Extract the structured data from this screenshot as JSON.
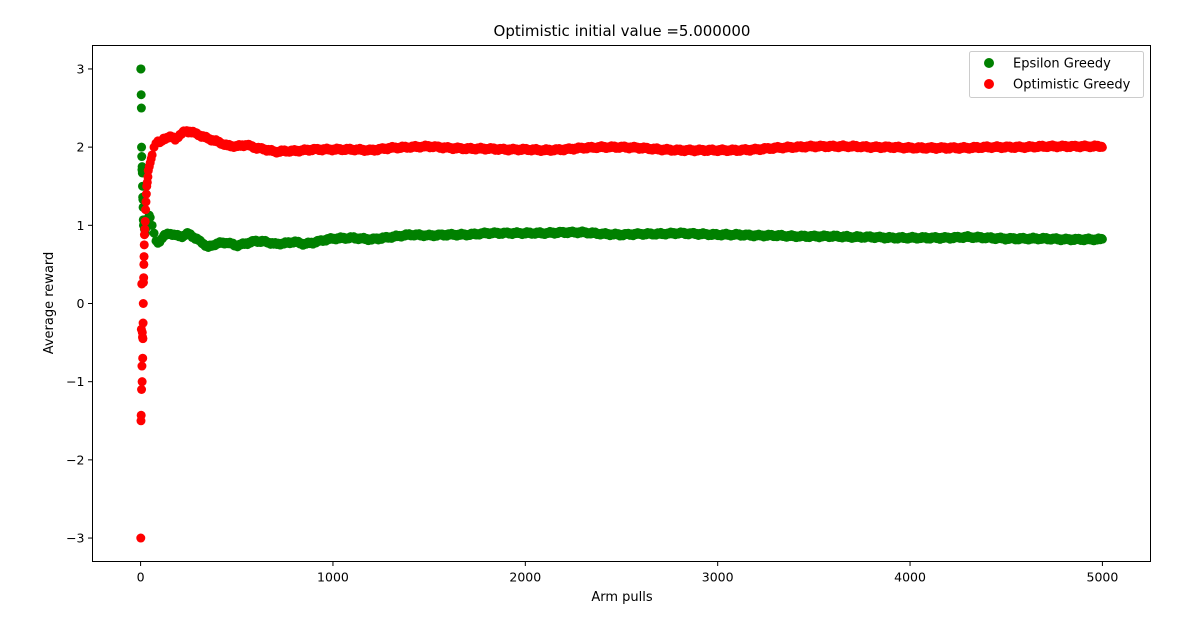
{
  "chart_data": {
    "type": "scatter",
    "title": "Optimistic initial value =5.000000",
    "xlabel": "Arm pulls",
    "ylabel": "Average reward",
    "xlim": [
      -250,
      5250
    ],
    "ylim": [
      -3.3,
      3.3
    ],
    "xticks": [
      0,
      1000,
      2000,
      3000,
      4000,
      5000
    ],
    "xtick_labels": [
      "0",
      "1000",
      "2000",
      "3000",
      "4000",
      "5000"
    ],
    "yticks": [
      -3,
      -2,
      -1,
      0,
      1,
      2,
      3
    ],
    "ytick_labels": [
      "−3",
      "−2",
      "−1",
      "0",
      "1",
      "2",
      "3"
    ],
    "grid": false,
    "legend_position": "top-right",
    "n_points": 5000,
    "series": [
      {
        "name": "Epsilon Greedy",
        "color": "#008000",
        "early_points": [
          [
            1,
            3.0
          ],
          [
            2,
            3.0
          ],
          [
            3,
            2.67
          ],
          [
            4,
            2.5
          ],
          [
            5,
            2.0
          ],
          [
            6,
            1.88
          ],
          [
            7,
            1.71
          ],
          [
            8,
            1.75
          ],
          [
            9,
            1.67
          ],
          [
            10,
            1.5
          ],
          [
            11,
            1.36
          ],
          [
            12,
            1.33
          ],
          [
            13,
            1.23
          ],
          [
            14,
            1.07
          ],
          [
            15,
            1.0
          ],
          [
            16,
            1.06
          ],
          [
            18,
            1.0
          ],
          [
            20,
            0.95
          ],
          [
            25,
            0.9
          ],
          [
            30,
            0.97
          ],
          [
            35,
            1.03
          ],
          [
            40,
            1.1
          ],
          [
            45,
            1.13
          ],
          [
            50,
            1.1
          ],
          [
            60,
            1.0
          ],
          [
            70,
            0.9
          ],
          [
            80,
            0.8
          ],
          [
            90,
            0.77
          ]
        ],
        "trend": [
          [
            100,
            0.8
          ],
          [
            120,
            0.86
          ],
          [
            150,
            0.9
          ],
          [
            180,
            0.87
          ],
          [
            220,
            0.86
          ],
          [
            250,
            0.9
          ],
          [
            280,
            0.84
          ],
          [
            320,
            0.78
          ],
          [
            350,
            0.72
          ],
          [
            400,
            0.77
          ],
          [
            450,
            0.78
          ],
          [
            500,
            0.74
          ],
          [
            550,
            0.77
          ],
          [
            600,
            0.8
          ],
          [
            650,
            0.79
          ],
          [
            700,
            0.76
          ],
          [
            750,
            0.77
          ],
          [
            800,
            0.79
          ],
          [
            850,
            0.76
          ],
          [
            900,
            0.78
          ],
          [
            950,
            0.81
          ],
          [
            1000,
            0.83
          ],
          [
            1100,
            0.84
          ],
          [
            1200,
            0.82
          ],
          [
            1300,
            0.85
          ],
          [
            1400,
            0.88
          ],
          [
            1500,
            0.87
          ],
          [
            1600,
            0.88
          ],
          [
            1700,
            0.88
          ],
          [
            1800,
            0.9
          ],
          [
            1900,
            0.9
          ],
          [
            2000,
            0.9
          ],
          [
            2100,
            0.9
          ],
          [
            2200,
            0.91
          ],
          [
            2300,
            0.91
          ],
          [
            2400,
            0.89
          ],
          [
            2500,
            0.88
          ],
          [
            2600,
            0.89
          ],
          [
            2700,
            0.89
          ],
          [
            2800,
            0.9
          ],
          [
            2900,
            0.89
          ],
          [
            3000,
            0.88
          ],
          [
            3100,
            0.88
          ],
          [
            3200,
            0.87
          ],
          [
            3300,
            0.87
          ],
          [
            3400,
            0.86
          ],
          [
            3500,
            0.86
          ],
          [
            3600,
            0.86
          ],
          [
            3700,
            0.85
          ],
          [
            3800,
            0.85
          ],
          [
            3900,
            0.84
          ],
          [
            4000,
            0.84
          ],
          [
            4100,
            0.84
          ],
          [
            4200,
            0.84
          ],
          [
            4300,
            0.85
          ],
          [
            4400,
            0.84
          ],
          [
            4500,
            0.83
          ],
          [
            4600,
            0.83
          ],
          [
            4700,
            0.83
          ],
          [
            4800,
            0.82
          ],
          [
            4900,
            0.82
          ],
          [
            5000,
            0.82
          ]
        ]
      },
      {
        "name": "Optimistic Greedy",
        "color": "#ff0000",
        "early_points": [
          [
            1,
            -3.0
          ],
          [
            2,
            -1.5
          ],
          [
            3,
            -1.43
          ],
          [
            4,
            -0.33
          ],
          [
            5,
            -1.1
          ],
          [
            6,
            0.25
          ],
          [
            7,
            -0.8
          ],
          [
            8,
            -1.0
          ],
          [
            9,
            -0.37
          ],
          [
            10,
            -0.43
          ],
          [
            11,
            -0.7
          ],
          [
            12,
            -0.45
          ],
          [
            13,
            -0.25
          ],
          [
            14,
            0.0
          ],
          [
            15,
            0.27
          ],
          [
            16,
            0.33
          ],
          [
            17,
            0.5
          ],
          [
            18,
            0.6
          ],
          [
            19,
            0.75
          ],
          [
            20,
            0.88
          ],
          [
            22,
            0.95
          ],
          [
            24,
            1.05
          ],
          [
            26,
            1.2
          ],
          [
            28,
            1.3
          ],
          [
            30,
            1.4
          ],
          [
            32,
            1.5
          ],
          [
            35,
            1.55
          ],
          [
            38,
            1.62
          ],
          [
            40,
            1.7
          ],
          [
            45,
            1.75
          ],
          [
            50,
            1.8
          ],
          [
            55,
            1.85
          ],
          [
            60,
            1.9
          ],
          [
            70,
            2.0
          ],
          [
            80,
            2.05
          ],
          [
            90,
            2.08
          ]
        ],
        "trend": [
          [
            100,
            2.05
          ],
          [
            120,
            2.1
          ],
          [
            150,
            2.14
          ],
          [
            180,
            2.1
          ],
          [
            200,
            2.15
          ],
          [
            230,
            2.2
          ],
          [
            260,
            2.2
          ],
          [
            300,
            2.16
          ],
          [
            350,
            2.11
          ],
          [
            400,
            2.07
          ],
          [
            450,
            2.02
          ],
          [
            500,
            2.01
          ],
          [
            550,
            2.03
          ],
          [
            600,
            1.99
          ],
          [
            650,
            1.97
          ],
          [
            700,
            1.94
          ],
          [
            750,
            1.95
          ],
          [
            800,
            1.95
          ],
          [
            850,
            1.96
          ],
          [
            900,
            1.97
          ],
          [
            1000,
            1.97
          ],
          [
            1100,
            1.97
          ],
          [
            1200,
            1.96
          ],
          [
            1300,
            1.99
          ],
          [
            1400,
            2.0
          ],
          [
            1500,
            2.01
          ],
          [
            1600,
            1.99
          ],
          [
            1700,
            1.98
          ],
          [
            1800,
            1.98
          ],
          [
            1900,
            1.97
          ],
          [
            2000,
            1.97
          ],
          [
            2100,
            1.96
          ],
          [
            2200,
            1.97
          ],
          [
            2300,
            1.99
          ],
          [
            2400,
            2.0
          ],
          [
            2500,
            2.0
          ],
          [
            2600,
            1.99
          ],
          [
            2700,
            1.97
          ],
          [
            2800,
            1.96
          ],
          [
            2900,
            1.96
          ],
          [
            3000,
            1.96
          ],
          [
            3100,
            1.96
          ],
          [
            3200,
            1.97
          ],
          [
            3300,
            1.99
          ],
          [
            3400,
            2.0
          ],
          [
            3500,
            2.01
          ],
          [
            3600,
            2.01
          ],
          [
            3700,
            2.01
          ],
          [
            3800,
            2.0
          ],
          [
            3900,
            2.0
          ],
          [
            4000,
            1.99
          ],
          [
            4100,
            1.99
          ],
          [
            4200,
            1.99
          ],
          [
            4300,
            1.99
          ],
          [
            4400,
            2.0
          ],
          [
            4500,
            2.0
          ],
          [
            4600,
            2.0
          ],
          [
            4700,
            2.01
          ],
          [
            4800,
            2.01
          ],
          [
            4900,
            2.01
          ],
          [
            5000,
            2.01
          ]
        ]
      }
    ]
  }
}
